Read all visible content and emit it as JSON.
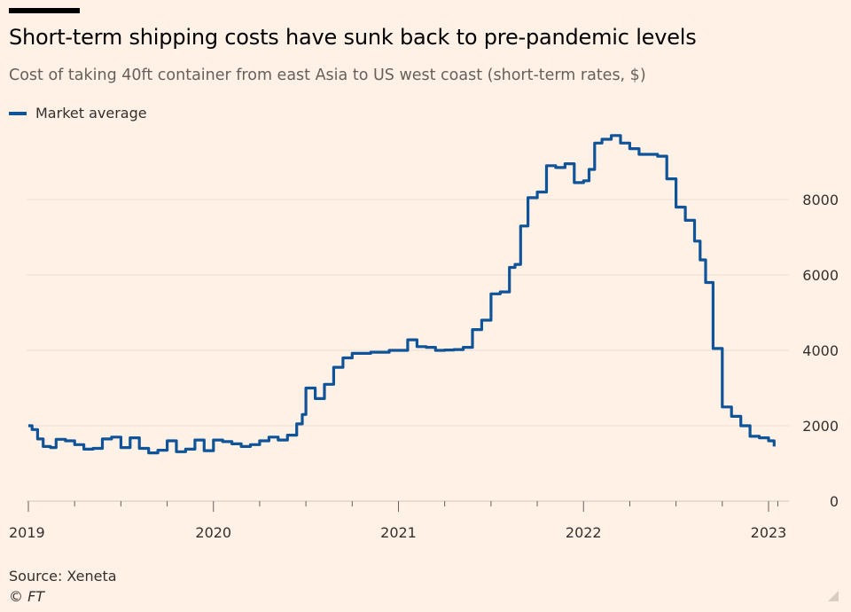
{
  "header": {
    "title": "Short-term shipping costs have sunk back to pre-pandemic levels",
    "subtitle": "Cost of taking 40ft container from east Asia to US west coast (short-term rates, $)"
  },
  "footer": {
    "source": "Source: Xeneta",
    "credit": "© FT"
  },
  "chart_data": {
    "type": "line",
    "title": "Short-term shipping costs have sunk back to pre-pandemic levels",
    "subtitle": "Cost of taking 40ft container from east Asia to US west coast (short-term rates, $)",
    "xlabel": "",
    "ylabel": "",
    "xlim": [
      2019.0,
      2023.05
    ],
    "ylim": [
      0,
      9800
    ],
    "x_ticks": [
      2019,
      2020,
      2021,
      2022,
      2023
    ],
    "x_tick_labels": [
      "2019",
      "2020",
      "2021",
      "2022",
      "2023"
    ],
    "y_ticks": [
      0,
      2000,
      4000,
      6000,
      8000
    ],
    "y_tick_labels": [
      "0",
      "2000",
      "4000",
      "6000",
      "8000"
    ],
    "grid": true,
    "legend": "top-left",
    "line_color": "#0F5499",
    "series": [
      {
        "name": "Market average",
        "x": [
          2019.0,
          2019.02,
          2019.05,
          2019.08,
          2019.12,
          2019.15,
          2019.2,
          2019.25,
          2019.3,
          2019.35,
          2019.4,
          2019.45,
          2019.5,
          2019.55,
          2019.6,
          2019.65,
          2019.7,
          2019.75,
          2019.8,
          2019.85,
          2019.9,
          2019.95,
          2020.0,
          2020.05,
          2020.1,
          2020.15,
          2020.2,
          2020.25,
          2020.3,
          2020.35,
          2020.4,
          2020.45,
          2020.48,
          2020.5,
          2020.55,
          2020.6,
          2020.65,
          2020.7,
          2020.75,
          2020.8,
          2020.85,
          2020.9,
          2020.95,
          2021.0,
          2021.05,
          2021.1,
          2021.15,
          2021.2,
          2021.25,
          2021.3,
          2021.35,
          2021.4,
          2021.45,
          2021.5,
          2021.55,
          2021.6,
          2021.63,
          2021.66,
          2021.7,
          2021.75,
          2021.8,
          2021.85,
          2021.88,
          2021.9,
          2021.95,
          2022.0,
          2022.03,
          2022.06,
          2022.1,
          2022.15,
          2022.2,
          2022.25,
          2022.3,
          2022.35,
          2022.4,
          2022.45,
          2022.5,
          2022.55,
          2022.6,
          2022.63,
          2022.66,
          2022.7,
          2022.75,
          2022.8,
          2022.85,
          2022.9,
          2022.95,
          2023.0,
          2023.03
        ],
        "values": [
          2000,
          1900,
          1650,
          1450,
          1420,
          1640,
          1600,
          1500,
          1380,
          1400,
          1650,
          1700,
          1420,
          1680,
          1400,
          1280,
          1350,
          1600,
          1310,
          1380,
          1620,
          1340,
          1620,
          1580,
          1520,
          1450,
          1500,
          1600,
          1700,
          1620,
          1750,
          2050,
          2300,
          3000,
          2720,
          3100,
          3550,
          3800,
          3920,
          3920,
          3950,
          3950,
          4000,
          4000,
          4280,
          4100,
          4080,
          4000,
          4010,
          4020,
          4080,
          4550,
          4800,
          5500,
          5550,
          6200,
          6280,
          7300,
          8050,
          8200,
          8900,
          8850,
          8850,
          8950,
          8450,
          8500,
          8800,
          9500,
          9600,
          9700,
          9500,
          9350,
          9200,
          9200,
          9150,
          8550,
          7800,
          7450,
          6900,
          6400,
          5800,
          4050,
          2500,
          2250,
          2000,
          1720,
          1680,
          1600,
          1450
        ]
      }
    ]
  }
}
